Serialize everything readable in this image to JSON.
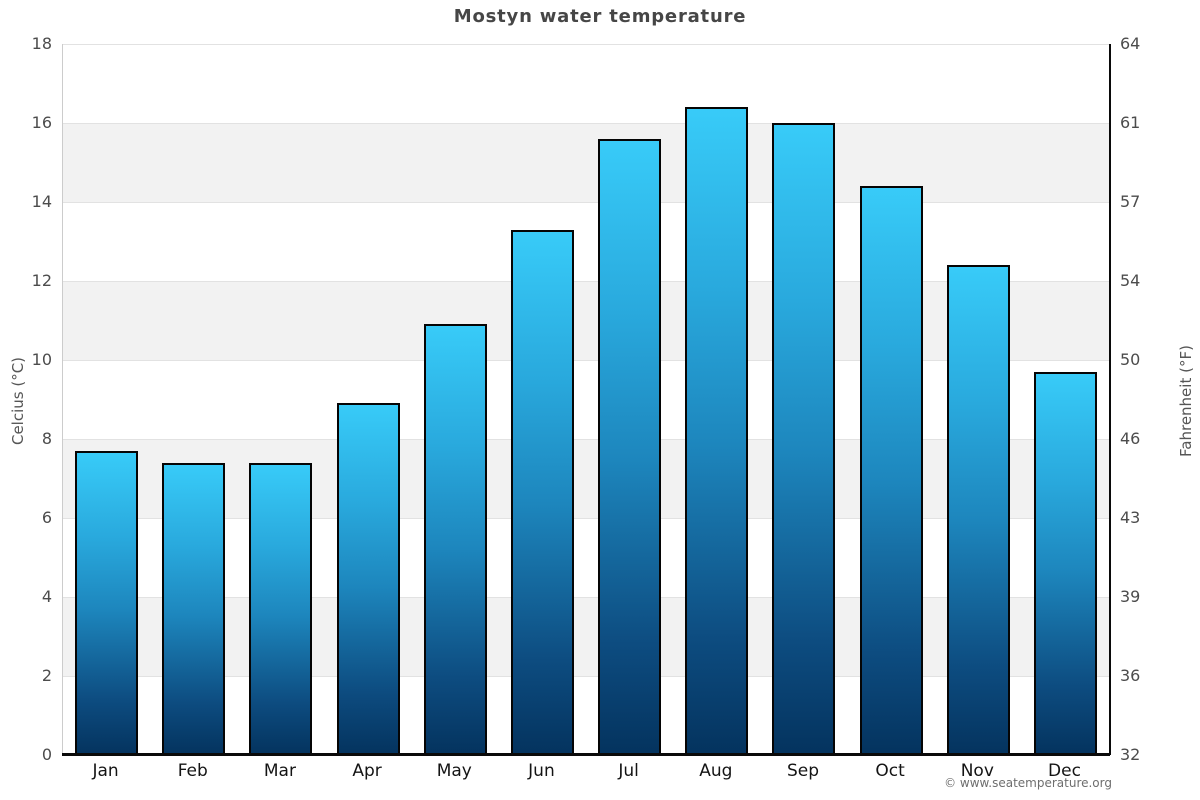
{
  "title": "Mostyn water temperature",
  "footer": {
    "attribution": "© www.seatemperature.org"
  },
  "colors": {
    "bar_top": "#38cbf8",
    "bar_mid": "#1d86bd",
    "bar_bottom": "#04335e",
    "bar_border": "#050505",
    "band_light": "#ffffff",
    "band_dark": "#f2f2f2",
    "gridline": "#e2e2e2",
    "axis_line": "#0a0a0a",
    "title_text": "#464646",
    "tick_text": "#4c4c4c"
  },
  "chart_data": {
    "type": "bar",
    "title": "Mostyn water temperature",
    "categories": [
      "Jan",
      "Feb",
      "Mar",
      "Apr",
      "May",
      "Jun",
      "Jul",
      "Aug",
      "Sep",
      "Oct",
      "Nov",
      "Dec"
    ],
    "values": [
      7.7,
      7.4,
      7.4,
      8.9,
      10.9,
      13.3,
      15.6,
      16.4,
      16.0,
      14.4,
      12.4,
      9.7
    ],
    "series_name": "Water temperature (°C)",
    "xlabel": "",
    "ylabel_left": "Celcius (°C)",
    "ylabel_right": "Fahrenheit (°F)",
    "ylim": [
      0,
      18
    ],
    "yticks_celsius": [
      0,
      2,
      4,
      6,
      8,
      10,
      12,
      14,
      16,
      18
    ],
    "yticks_fahrenheit": [
      32,
      36,
      39,
      43,
      46,
      50,
      54,
      57,
      61,
      64
    ],
    "grid": true,
    "band_step": 2,
    "legend": false
  }
}
